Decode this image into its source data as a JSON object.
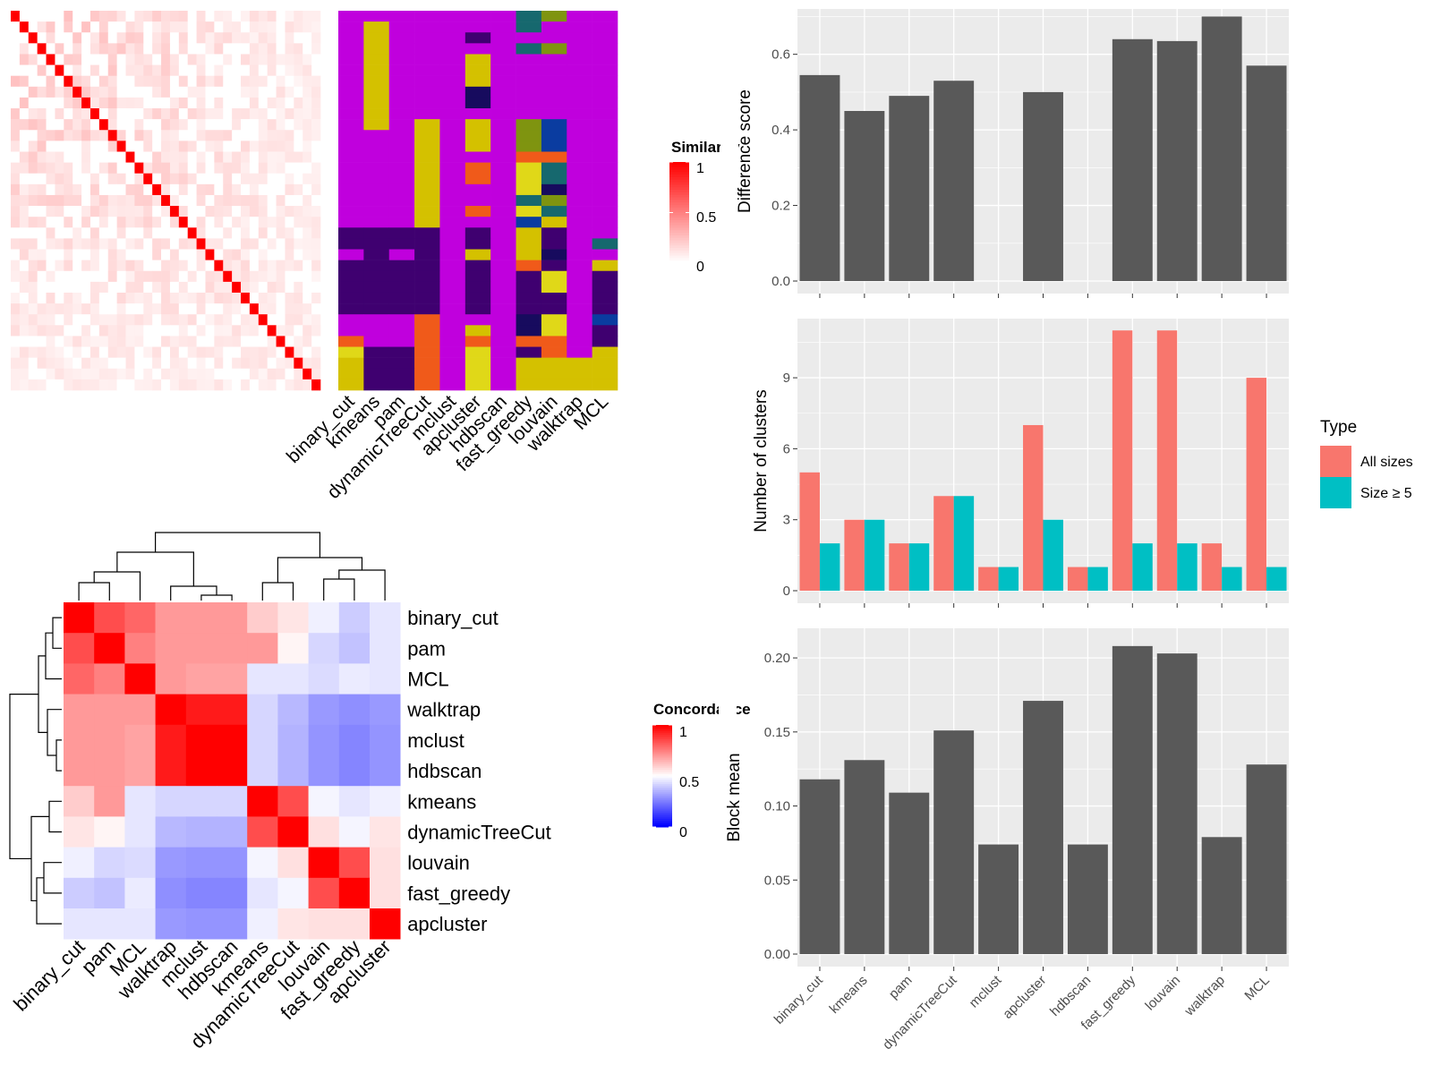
{
  "colors": {
    "bar": "#595959",
    "panel_bg": "#ebebeb",
    "grid": "#ffffff",
    "all_sizes": "#f8766d",
    "size_ge_5": "#00bfc4",
    "class_palette": [
      "#c000dd",
      "#3f0070",
      "#d4c100",
      "#f05a1a",
      "#7f9410",
      "#0a3ca0",
      "#16686e",
      "#170b5e",
      "#e0d818"
    ]
  },
  "similarity_heatmap": {
    "legend_title": "Similarity",
    "legend_ticks": [
      "1",
      "0.5",
      "0"
    ],
    "methods": [
      "binary_cut",
      "kmeans",
      "pam",
      "dynamicTreeCut",
      "mclust",
      "apcluster",
      "hdbscan",
      "fast_greedy",
      "louvain",
      "walktrap",
      "MCL"
    ],
    "n_terms": 35,
    "membership": [
      [
        0,
        0,
        0,
        0,
        0,
        0,
        0,
        6,
        4,
        0,
        0
      ],
      [
        0,
        2,
        0,
        0,
        0,
        0,
        0,
        6,
        0,
        0,
        0
      ],
      [
        0,
        2,
        0,
        0,
        0,
        1,
        0,
        0,
        0,
        0,
        0
      ],
      [
        0,
        2,
        0,
        0,
        0,
        0,
        0,
        6,
        4,
        0,
        0
      ],
      [
        0,
        2,
        0,
        0,
        0,
        2,
        0,
        0,
        0,
        0,
        0
      ],
      [
        0,
        2,
        0,
        0,
        0,
        2,
        0,
        0,
        0,
        0,
        0
      ],
      [
        0,
        2,
        0,
        0,
        0,
        2,
        0,
        0,
        0,
        0,
        0
      ],
      [
        0,
        2,
        0,
        0,
        0,
        7,
        0,
        0,
        0,
        0,
        0
      ],
      [
        0,
        2,
        0,
        0,
        0,
        7,
        0,
        0,
        0,
        0,
        0
      ],
      [
        0,
        2,
        0,
        0,
        0,
        0,
        0,
        0,
        0,
        0,
        0
      ],
      [
        0,
        2,
        0,
        2,
        0,
        2,
        0,
        4,
        5,
        0,
        0
      ],
      [
        0,
        0,
        0,
        2,
        0,
        2,
        0,
        4,
        5,
        0,
        0
      ],
      [
        0,
        0,
        0,
        2,
        0,
        2,
        0,
        4,
        5,
        0,
        0
      ],
      [
        0,
        0,
        0,
        2,
        0,
        0,
        0,
        3,
        3,
        0,
        0
      ],
      [
        0,
        0,
        0,
        2,
        0,
        3,
        0,
        8,
        6,
        0,
        0
      ],
      [
        0,
        0,
        0,
        2,
        0,
        3,
        0,
        8,
        6,
        0,
        0
      ],
      [
        0,
        0,
        0,
        2,
        0,
        0,
        0,
        8,
        7,
        0,
        0
      ],
      [
        0,
        0,
        0,
        2,
        0,
        0,
        0,
        6,
        4,
        0,
        0
      ],
      [
        0,
        0,
        0,
        2,
        0,
        3,
        0,
        8,
        6,
        0,
        0
      ],
      [
        0,
        0,
        0,
        2,
        0,
        0,
        0,
        5,
        2,
        0,
        0
      ],
      [
        1,
        1,
        1,
        1,
        0,
        1,
        0,
        2,
        1,
        0,
        0
      ],
      [
        1,
        1,
        1,
        1,
        0,
        1,
        0,
        2,
        1,
        0,
        6
      ],
      [
        0,
        1,
        0,
        1,
        0,
        2,
        0,
        2,
        7,
        0,
        0
      ],
      [
        1,
        1,
        1,
        1,
        0,
        1,
        0,
        3,
        1,
        0,
        2
      ],
      [
        1,
        1,
        1,
        1,
        0,
        1,
        0,
        1,
        8,
        0,
        1
      ],
      [
        1,
        1,
        1,
        1,
        0,
        1,
        0,
        1,
        8,
        0,
        1
      ],
      [
        1,
        1,
        1,
        1,
        0,
        1,
        0,
        1,
        1,
        0,
        1
      ],
      [
        1,
        1,
        1,
        1,
        0,
        1,
        0,
        1,
        1,
        0,
        1
      ],
      [
        0,
        0,
        0,
        3,
        0,
        0,
        0,
        7,
        8,
        0,
        5
      ],
      [
        0,
        0,
        0,
        3,
        0,
        2,
        0,
        7,
        8,
        0,
        1
      ],
      [
        3,
        0,
        0,
        3,
        0,
        3,
        0,
        3,
        3,
        0,
        1
      ],
      [
        8,
        1,
        1,
        3,
        0,
        8,
        0,
        1,
        3,
        0,
        2
      ],
      [
        2,
        1,
        1,
        3,
        0,
        8,
        0,
        2,
        2,
        2,
        2
      ],
      [
        2,
        1,
        1,
        3,
        0,
        8,
        0,
        2,
        2,
        2,
        2
      ],
      [
        2,
        1,
        1,
        3,
        0,
        8,
        0,
        2,
        2,
        2,
        2
      ]
    ]
  },
  "concordance_heatmap": {
    "legend_title": "Concordance",
    "legend_ticks": [
      "1",
      "0.5",
      "0"
    ],
    "methods": [
      "binary_cut",
      "pam",
      "MCL",
      "walktrap",
      "mclust",
      "hdbscan",
      "kmeans",
      "dynamicTreeCut",
      "louvain",
      "fast_greedy",
      "apcluster"
    ],
    "matrix": [
      [
        1.0,
        0.85,
        0.8,
        0.7,
        0.7,
        0.7,
        0.6,
        0.55,
        0.47,
        0.4,
        0.45
      ],
      [
        0.85,
        1.0,
        0.75,
        0.7,
        0.7,
        0.7,
        0.7,
        0.52,
        0.42,
        0.38,
        0.45
      ],
      [
        0.8,
        0.75,
        1.0,
        0.7,
        0.68,
        0.68,
        0.45,
        0.45,
        0.43,
        0.46,
        0.45
      ],
      [
        0.7,
        0.7,
        0.7,
        1.0,
        0.95,
        0.95,
        0.42,
        0.36,
        0.3,
        0.28,
        0.3
      ],
      [
        0.7,
        0.7,
        0.68,
        0.95,
        1.0,
        1.0,
        0.42,
        0.35,
        0.29,
        0.26,
        0.29
      ],
      [
        0.7,
        0.7,
        0.68,
        0.95,
        1.0,
        1.0,
        0.42,
        0.35,
        0.29,
        0.26,
        0.29
      ],
      [
        0.6,
        0.7,
        0.45,
        0.42,
        0.42,
        0.42,
        1.0,
        0.85,
        0.48,
        0.45,
        0.47
      ],
      [
        0.55,
        0.52,
        0.45,
        0.36,
        0.35,
        0.35,
        0.85,
        1.0,
        0.56,
        0.48,
        0.55
      ],
      [
        0.47,
        0.42,
        0.43,
        0.3,
        0.29,
        0.29,
        0.48,
        0.56,
        1.0,
        0.85,
        0.56
      ],
      [
        0.4,
        0.38,
        0.46,
        0.28,
        0.26,
        0.26,
        0.45,
        0.48,
        0.85,
        1.0,
        0.56
      ],
      [
        0.45,
        0.45,
        0.45,
        0.3,
        0.29,
        0.29,
        0.47,
        0.55,
        0.56,
        0.56,
        1.0
      ]
    ]
  },
  "legend": {
    "title": "Type",
    "items": [
      "All sizes",
      "Size ≥ 5"
    ]
  },
  "chart_data": [
    {
      "type": "bar",
      "categories": [
        "binary_cut",
        "kmeans",
        "pam",
        "dynamicTreeCut",
        "mclust",
        "apcluster",
        "hdbscan",
        "fast_greedy",
        "louvain",
        "walktrap",
        "MCL"
      ],
      "values": [
        0.545,
        0.45,
        0.49,
        0.53,
        null,
        0.5,
        null,
        0.64,
        0.635,
        0.7,
        0.57
      ],
      "ylabel": "Difference score",
      "ylim": [
        0,
        0.72
      ],
      "yticks": [
        0.0,
        0.2,
        0.4,
        0.6
      ],
      "ytick_labels": [
        "0.0",
        "0.2",
        "0.4",
        "0.6"
      ],
      "grid": true
    },
    {
      "type": "bar",
      "categories": [
        "binary_cut",
        "kmeans",
        "pam",
        "dynamicTreeCut",
        "mclust",
        "apcluster",
        "hdbscan",
        "fast_greedy",
        "louvain",
        "walktrap",
        "MCL"
      ],
      "series": [
        {
          "name": "All sizes",
          "values": [
            5,
            3,
            2,
            4,
            1,
            7,
            1,
            11,
            11,
            2,
            9
          ]
        },
        {
          "name": "Size ≥ 5",
          "values": [
            2,
            3,
            2,
            4,
            1,
            3,
            1,
            2,
            2,
            1,
            1
          ]
        }
      ],
      "ylabel": "Number of clusters",
      "ylim": [
        0,
        11.5
      ],
      "yticks": [
        0,
        3,
        6,
        9
      ],
      "ytick_labels": [
        "0",
        "3",
        "6",
        "9"
      ],
      "legend_position": "right",
      "grid": true
    },
    {
      "type": "bar",
      "categories": [
        "binary_cut",
        "kmeans",
        "pam",
        "dynamicTreeCut",
        "mclust",
        "apcluster",
        "hdbscan",
        "fast_greedy",
        "louvain",
        "walktrap",
        "MCL"
      ],
      "values": [
        0.118,
        0.131,
        0.109,
        0.151,
        0.074,
        0.171,
        0.074,
        0.208,
        0.203,
        0.079,
        0.128
      ],
      "ylabel": "Block mean",
      "ylim": [
        0,
        0.22
      ],
      "yticks": [
        0.0,
        0.05,
        0.1,
        0.15,
        0.2
      ],
      "ytick_labels": [
        "0.00",
        "0.05",
        "0.10",
        "0.15",
        "0.20"
      ],
      "grid": true
    }
  ]
}
